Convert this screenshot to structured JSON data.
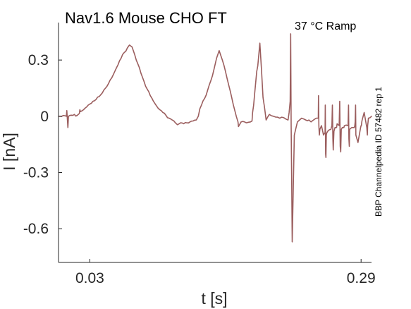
{
  "chart_data": {
    "type": "line",
    "title": "Nav1.6  Mouse  CHO FT",
    "condition": "37 °C  Ramp",
    "side_label": "BBP Channelpedia ID 57482 rep 1",
    "xlabel": "t [s]",
    "ylabel": "I [nA]",
    "xlim": [
      0.0,
      0.3
    ],
    "ylim": [
      -0.78,
      0.5
    ],
    "x_ticks": [
      0.03,
      0.29
    ],
    "x_tick_labels": [
      "0.03",
      "0.29"
    ],
    "y_ticks": [
      0.3,
      0.0,
      -0.3,
      -0.6
    ],
    "y_tick_labels": [
      "0.3",
      "0",
      "-0.3",
      "-0.6"
    ],
    "grid": false,
    "color": "#9b5e5e",
    "series": [
      {
        "x": [
          0.0,
          0.0075,
          0.008,
          0.009,
          0.0095,
          0.011,
          0.018,
          0.02,
          0.0205,
          0.021,
          0.024,
          0.027,
          0.03,
          0.033,
          0.036,
          0.039,
          0.042,
          0.045,
          0.048,
          0.051,
          0.054,
          0.057,
          0.06,
          0.063,
          0.066,
          0.068,
          0.0705,
          0.073,
          0.076,
          0.079,
          0.082,
          0.085,
          0.088,
          0.091,
          0.094,
          0.097,
          0.1,
          0.103,
          0.106,
          0.109,
          0.112,
          0.114,
          0.117,
          0.12,
          0.123,
          0.126,
          0.129,
          0.132,
          0.134,
          0.1355,
          0.137,
          0.14,
          0.143,
          0.146,
          0.149,
          0.1515,
          0.154,
          0.157,
          0.16,
          0.163,
          0.166,
          0.169,
          0.172,
          0.1725,
          0.175,
          0.18,
          0.184,
          0.1855,
          0.186,
          0.187,
          0.188,
          0.189,
          0.19,
          0.191,
          0.193,
          0.196,
          0.199,
          0.202,
          0.206,
          0.21,
          0.214,
          0.218,
          0.22,
          0.221,
          0.222,
          0.2225,
          0.223,
          0.2235,
          0.224,
          0.226,
          0.229,
          0.233,
          0.237,
          0.24,
          0.242,
          0.247,
          0.249,
          0.2492,
          0.2495,
          0.25,
          0.2505,
          0.252,
          0.254,
          0.255,
          0.2555,
          0.2557,
          0.256,
          0.2563,
          0.2567,
          0.257,
          0.258,
          0.261,
          0.262,
          0.2625,
          0.263,
          0.2633,
          0.264,
          0.265,
          0.2665,
          0.267,
          0.269,
          0.2695,
          0.27,
          0.2705,
          0.271,
          0.272,
          0.2735,
          0.274,
          0.2775,
          0.278,
          0.2783,
          0.2787,
          0.279,
          0.281,
          0.2835,
          0.284,
          0.2843,
          0.2847,
          0.285,
          0.287,
          0.2895,
          0.29,
          0.2903,
          0.2907,
          0.291,
          0.293,
          0.2955,
          0.296,
          0.2963,
          0.2967,
          0.297,
          0.3
        ],
        "y": [
          0.0,
          0.0,
          0.03,
          -0.06,
          0.0,
          0.005,
          0.005,
          0.015,
          0.035,
          0.025,
          0.035,
          0.05,
          0.065,
          0.08,
          0.09,
          0.105,
          0.125,
          0.15,
          0.175,
          0.205,
          0.24,
          0.275,
          0.31,
          0.34,
          0.365,
          0.38,
          0.37,
          0.33,
          0.28,
          0.23,
          0.185,
          0.145,
          0.11,
          0.08,
          0.055,
          0.035,
          0.02,
          0.005,
          -0.01,
          -0.02,
          -0.035,
          -0.045,
          -0.035,
          -0.04,
          -0.035,
          -0.03,
          -0.025,
          -0.02,
          0.0,
          0.04,
          0.06,
          0.095,
          0.14,
          0.19,
          0.25,
          0.31,
          0.35,
          0.3,
          0.24,
          0.17,
          0.1,
          0.03,
          -0.03,
          -0.055,
          -0.03,
          -0.035,
          -0.03,
          -0.025,
          0.02,
          0.06,
          0.12,
          0.18,
          0.24,
          0.27,
          0.39,
          0.1,
          -0.02,
          0.01,
          0.0,
          -0.005,
          -0.005,
          -0.015,
          -0.02,
          0.02,
          0.08,
          0.44,
          -0.05,
          -0.36,
          -0.67,
          -0.1,
          -0.03,
          -0.01,
          -0.02,
          -0.02,
          -0.03,
          -0.01,
          -0.01,
          0.11,
          -0.05,
          -0.1,
          -0.07,
          -0.05,
          -0.1,
          -0.09,
          -0.09,
          0.06,
          -0.2,
          -0.22,
          -0.1,
          -0.09,
          -0.08,
          -0.07,
          -0.05,
          0.06,
          -0.12,
          -0.18,
          -0.08,
          -0.06,
          -0.06,
          -0.04,
          -0.05,
          0.08,
          -0.16,
          -0.19,
          -0.07,
          -0.06,
          -0.06,
          -0.05,
          -0.05,
          0.06,
          -0.12,
          -0.16,
          -0.07,
          -0.06,
          -0.06,
          -0.05,
          -0.03,
          0.06,
          -0.1,
          -0.14,
          -0.06,
          -0.05,
          -0.05,
          -0.03,
          -0.02,
          0.02,
          -0.06,
          -0.1,
          -0.05,
          -0.03,
          -0.01,
          0.0
        ]
      }
    ]
  }
}
